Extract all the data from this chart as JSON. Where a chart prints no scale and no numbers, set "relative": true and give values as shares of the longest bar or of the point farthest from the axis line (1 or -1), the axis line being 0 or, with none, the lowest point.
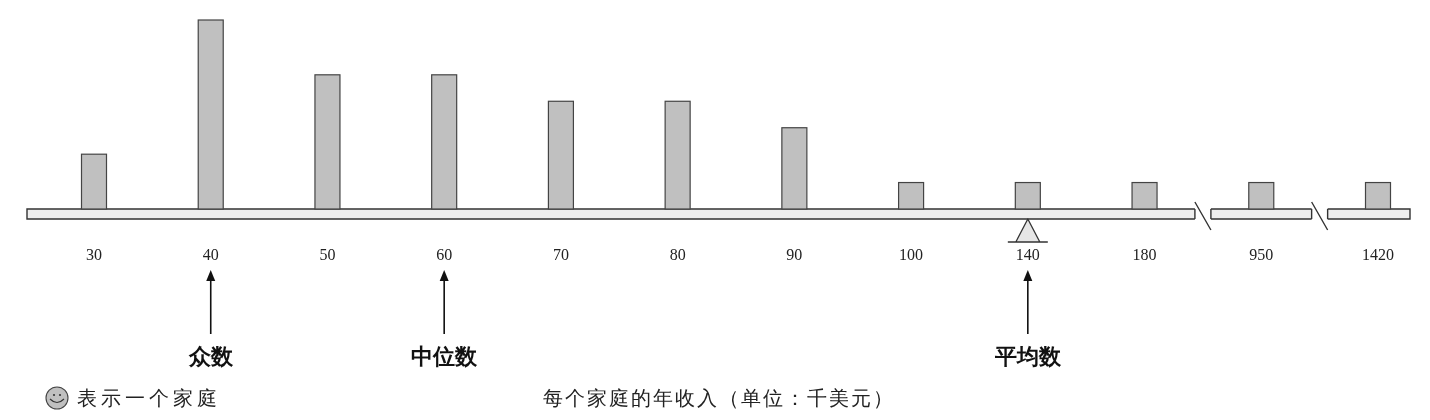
{
  "chart_data": {
    "type": "bar",
    "relative": true,
    "categories": [
      "30",
      "40",
      "50",
      "60",
      "70",
      "80",
      "90",
      "100",
      "140",
      "180",
      "950",
      "1420"
    ],
    "values": [
      0.29,
      1,
      0.71,
      0.71,
      0.57,
      0.57,
      0.43,
      0.14,
      0.14,
      0.14,
      0.14,
      0.14
    ],
    "color": "#c0c0c0",
    "annotations": [
      {
        "text": "众数",
        "x": "40"
      },
      {
        "text": "中位数",
        "x": "60"
      },
      {
        "text": "平均数",
        "x": "140"
      },
      "表示一个家庭",
      "每个家庭的年收入（单位：千美元）"
    ]
  }
}
